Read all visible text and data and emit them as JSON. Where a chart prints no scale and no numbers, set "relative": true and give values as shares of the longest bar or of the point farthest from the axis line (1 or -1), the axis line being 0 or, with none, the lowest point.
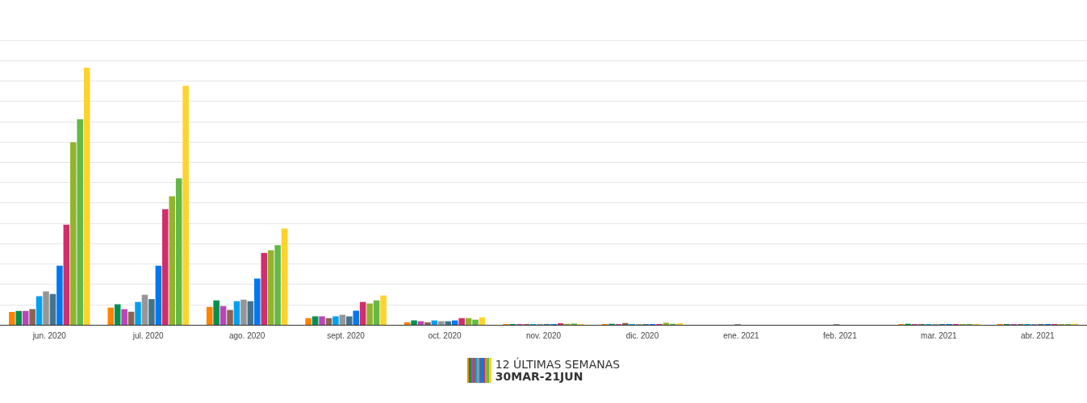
{
  "chart_data": {
    "type": "bar",
    "relative": true,
    "grid": "y",
    "categories": [
      "jun. 2020",
      "jul. 2020",
      "ago. 2020",
      "sept. 2020",
      "oct. 2020",
      "nov. 2020",
      "dic. 2020",
      "ene. 2021",
      "feb. 2021",
      "mar. 2021",
      "abr. 2021"
    ],
    "annotations": [
      "12 ÚLTIMAS SEMANAS",
      "30MAR-21JUN"
    ],
    "series": [
      {
        "color": "#ff8200",
        "values": [
          0.05,
          0.067,
          0.07,
          0.026,
          0.01,
          0.003,
          0.003,
          0,
          0,
          0.003,
          0.003
        ]
      },
      {
        "color": "#009150",
        "values": [
          0.054,
          0.08,
          0.095,
          0.033,
          0.017,
          0.003,
          0.004,
          0,
          0,
          0.004,
          0.003
        ]
      },
      {
        "color": "#b946b9",
        "values": [
          0.054,
          0.061,
          0.073,
          0.033,
          0.014,
          0.003,
          0.003,
          0,
          0,
          0.003,
          0.003
        ]
      },
      {
        "color": "#8c6450",
        "values": [
          0.061,
          0.051,
          0.058,
          0.026,
          0.01,
          0.003,
          0.007,
          0,
          0,
          0.003,
          0.003
        ]
      },
      {
        "color": "#00a0f0",
        "values": [
          0.111,
          0.089,
          0.092,
          0.033,
          0.017,
          0.003,
          0.003,
          0,
          0,
          0.003,
          0.003
        ]
      },
      {
        "color": "#969696",
        "values": [
          0.13,
          0.117,
          0.098,
          0.039,
          0.014,
          0.003,
          0.003,
          0.003,
          0.003,
          0.003,
          0.003
        ]
      },
      {
        "color": "#46738c",
        "values": [
          0.12,
          0.1,
          0.092,
          0.033,
          0.014,
          0.003,
          0.003,
          0,
          0,
          0.003,
          0.003
        ]
      },
      {
        "color": "#0078f0",
        "values": [
          0.23,
          0.23,
          0.18,
          0.055,
          0.017,
          0.003,
          0.003,
          0,
          0,
          0.003,
          0.003
        ]
      },
      {
        "color": "#d22d6e",
        "values": [
          0.39,
          0.45,
          0.28,
          0.089,
          0.026,
          0.006,
          0.003,
          0,
          0,
          0.003,
          0.003
        ]
      },
      {
        "color": "#91b42d",
        "values": [
          0.71,
          0.5,
          0.29,
          0.083,
          0.026,
          0.004,
          0.008,
          0,
          0,
          0.003,
          0.003
        ]
      },
      {
        "color": "#64b946",
        "values": [
          0.8,
          0.57,
          0.31,
          0.095,
          0.02,
          0.005,
          0.004,
          0,
          0,
          0.003,
          0.003
        ]
      },
      {
        "color": "#ffd22d",
        "values": [
          1,
          0.93,
          0.375,
          0.114,
          0.029,
          0.003,
          0.006,
          0,
          0,
          0.003,
          0.004
        ]
      }
    ]
  }
}
